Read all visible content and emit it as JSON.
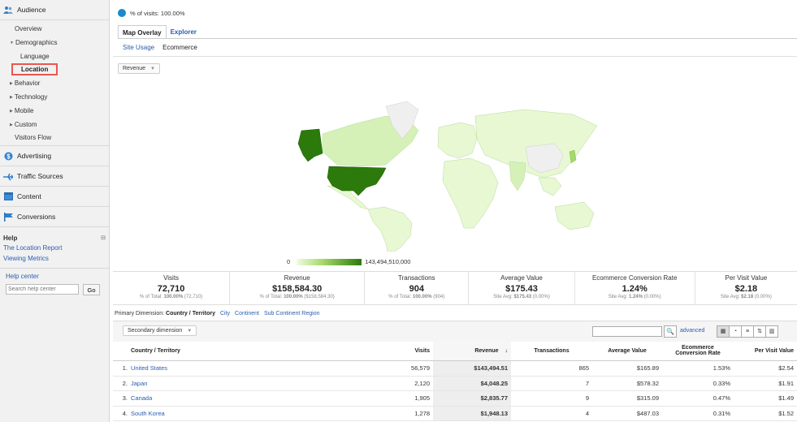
{
  "sidebar": {
    "audience": "Audience",
    "overview": "Overview",
    "demographics": "Demographics",
    "language": "Language",
    "location": "Location",
    "behavior": "Behavior",
    "technology": "Technology",
    "mobile": "Mobile",
    "custom": "Custom",
    "visitors_flow": "Visitors Flow",
    "advertising": "Advertising",
    "traffic_sources": "Traffic Sources",
    "content": "Content",
    "conversions": "Conversions",
    "help_title": "Help",
    "help_links": [
      "The Location Report",
      "Viewing Metrics"
    ],
    "help_center": "Help center",
    "search_placeholder": "Search help center",
    "go": "Go"
  },
  "segment": "% of visits: 100.00%",
  "tabs": [
    "Map Overlay",
    "Explorer"
  ],
  "subtabs": [
    "Site Usage",
    "Ecommerce"
  ],
  "metric_dropdown": "Revenue",
  "legend": {
    "min": "0",
    "max": "143,494,510,000"
  },
  "scorecards": [
    {
      "label": "Visits",
      "value": "72,710",
      "sub_prefix": "% of Total: ",
      "sub_bold": "100.00%",
      "sub_rest": " (72,710)"
    },
    {
      "label": "Revenue",
      "value": "$158,584.30",
      "sub_prefix": "% of Total: ",
      "sub_bold": "100.00%",
      "sub_rest": " ($158,584.30)"
    },
    {
      "label": "Transactions",
      "value": "904",
      "sub_prefix": "% of Total: ",
      "sub_bold": "100.00%",
      "sub_rest": " (904)"
    },
    {
      "label": "Average Value",
      "value": "$175.43",
      "sub_prefix": "Site Avg: ",
      "sub_bold": "$175.43",
      "sub_rest": " (0.00%)"
    },
    {
      "label": "Ecommerce Conversion Rate",
      "value": "1.24%",
      "sub_prefix": "Site Avg: ",
      "sub_bold": "1.24%",
      "sub_rest": " (0.00%)"
    },
    {
      "label": "Per Visit Value",
      "value": "$2.18",
      "sub_prefix": "Site Avg: ",
      "sub_bold": "$2.18",
      "sub_rest": " (0.00%)"
    }
  ],
  "primary": {
    "label": "Primary Dimension:",
    "current": "Country / Territory",
    "options": [
      "City",
      "Continent",
      "Sub Continent Region"
    ]
  },
  "secondary_dropdown": "Secondary dimension",
  "advanced": "advanced",
  "table": {
    "headers": [
      "Country / Territory",
      "Visits",
      "Revenue",
      "Transactions",
      "Average Value",
      "Ecommerce Conversion Rate",
      "Per Visit Value"
    ],
    "rows": [
      {
        "rank": "1.",
        "country": "United States",
        "visits": "56,579",
        "revenue": "$143,494.51",
        "transactions": "865",
        "avg": "$165.89",
        "conv": "1.53%",
        "pvv": "$2.54"
      },
      {
        "rank": "2.",
        "country": "Japan",
        "visits": "2,120",
        "revenue": "$4,048.25",
        "transactions": "7",
        "avg": "$578.32",
        "conv": "0.33%",
        "pvv": "$1.91"
      },
      {
        "rank": "3.",
        "country": "Canada",
        "visits": "1,905",
        "revenue": "$2,835.77",
        "transactions": "9",
        "avg": "$315.09",
        "conv": "0.47%",
        "pvv": "$1.49"
      },
      {
        "rank": "4.",
        "country": "South Korea",
        "visits": "1,278",
        "revenue": "$1,948.13",
        "transactions": "4",
        "avg": "$487.03",
        "conv": "0.31%",
        "pvv": "$1.52"
      }
    ]
  },
  "colors": {
    "link": "#2a5db0",
    "map_high": "#2b7a0b",
    "map_low": "#e7f8d3",
    "highlight": "#e8574f"
  }
}
